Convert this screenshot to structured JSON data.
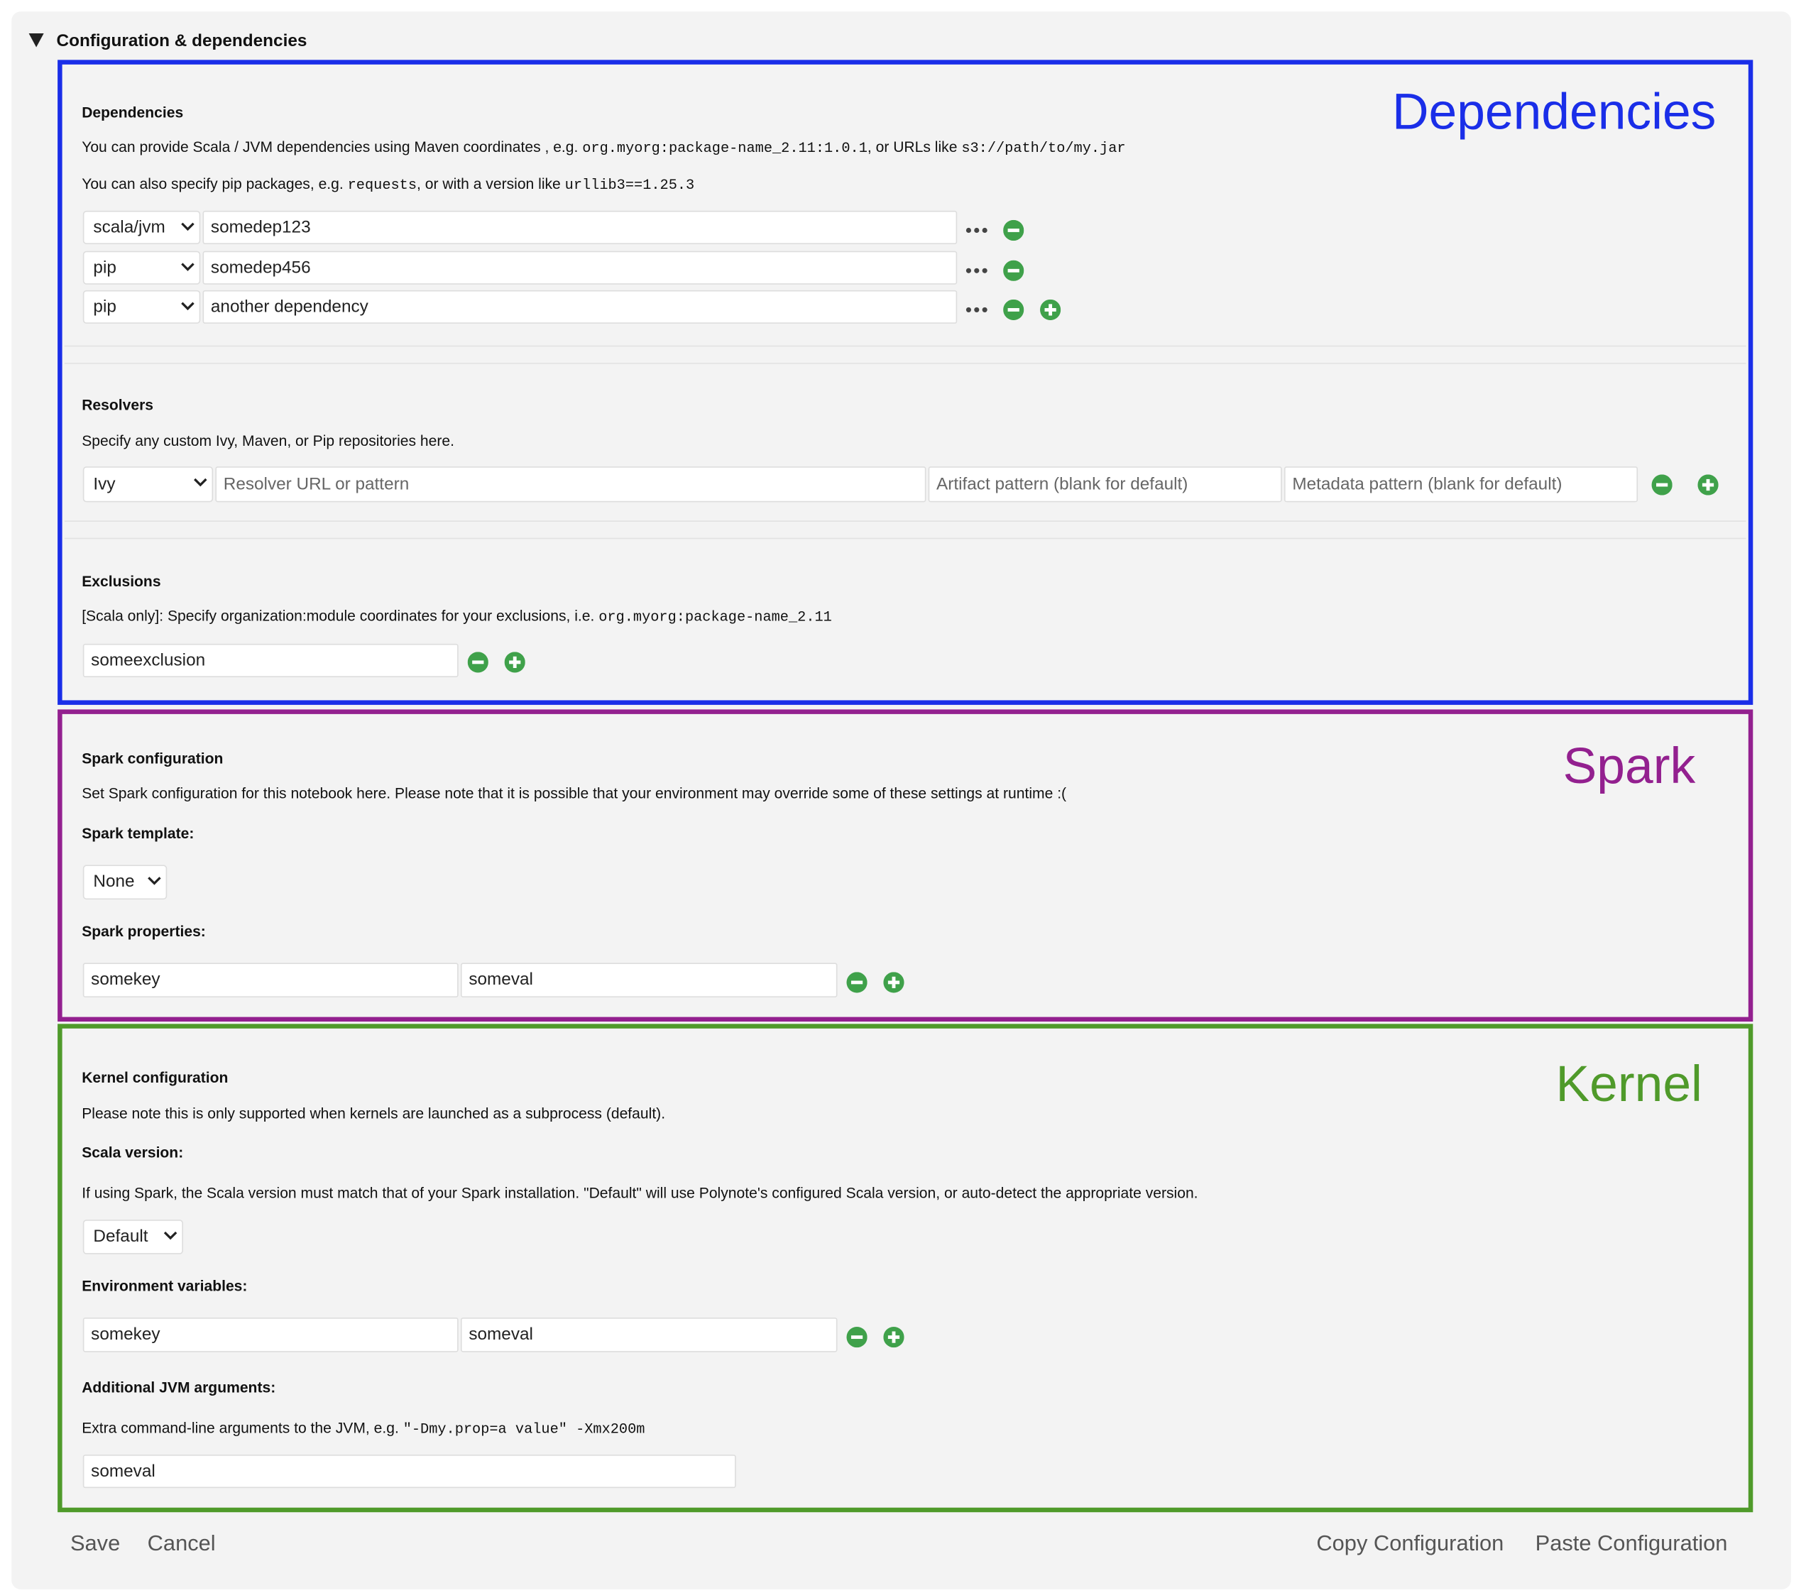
{
  "header": {
    "title": "Configuration & dependencies"
  },
  "dependencies": {
    "label": "Dependencies",
    "heading": "Dependencies",
    "description": [
      "You can provide Scala / JVM dependencies using Maven coordinates , e.g. ",
      "org.myorg:package-name_2.11:1.0.1",
      ", or URLs like ",
      "s3://path/to/my.jar"
    ],
    "pip_description": [
      "You can also specify pip packages, e.g. ",
      "requests",
      ", or with a version like ",
      "urllib3==1.25.3"
    ],
    "rows": [
      {
        "type": "scala/jvm",
        "value": "somedep123"
      },
      {
        "type": "pip",
        "value": "somedep456"
      },
      {
        "type": "pip",
        "value": "another dependency"
      }
    ]
  },
  "resolvers": {
    "heading": "Resolvers",
    "description": "Specify any custom Ivy, Maven, or Pip repositories here.",
    "row": {
      "type": "Ivy",
      "url_placeholder": "Resolver URL or pattern",
      "artifact_placeholder": "Artifact pattern (blank for default)",
      "metadata_placeholder": "Metadata pattern (blank for default)"
    }
  },
  "exclusions": {
    "heading": "Exclusions",
    "description": [
      "[Scala only]: Specify organization:module coordinates for your exclusions, i.e. ",
      "org.myorg:package-name_2.11"
    ],
    "value": "someexclusion"
  },
  "spark": {
    "label": "Spark",
    "heading": "Spark configuration",
    "description": "Set Spark configuration for this notebook here. Please note that it is possible that your environment may override some of these settings at runtime :(",
    "template_label": "Spark template:",
    "template": "None",
    "properties_label": "Spark properties:",
    "property": {
      "key": "somekey",
      "value": "someval"
    }
  },
  "kernel": {
    "label": "Kernel",
    "heading": "Kernel configuration",
    "description": "Please note this is only supported when kernels are launched as a subprocess (default).",
    "scala_label": "Scala version:",
    "scala_description": "If using Spark, the Scala version must match that of your Spark installation. \"Default\" will use Polynote's configured Scala version, or auto-detect the appropriate version.",
    "scala_version": "Default",
    "env_label": "Environment variables:",
    "env": {
      "key": "somekey",
      "value": "someval"
    },
    "jvm_label": "Additional JVM arguments:",
    "jvm_description": [
      "Extra command-line arguments to the JVM, e.g. ",
      "\"-Dmy.prop=a value\" -Xmx200m"
    ],
    "jvm_args": "someval"
  },
  "actions": {
    "save": "Save",
    "cancel": "Cancel",
    "copy": "Copy Configuration",
    "paste": "Paste Configuration"
  }
}
